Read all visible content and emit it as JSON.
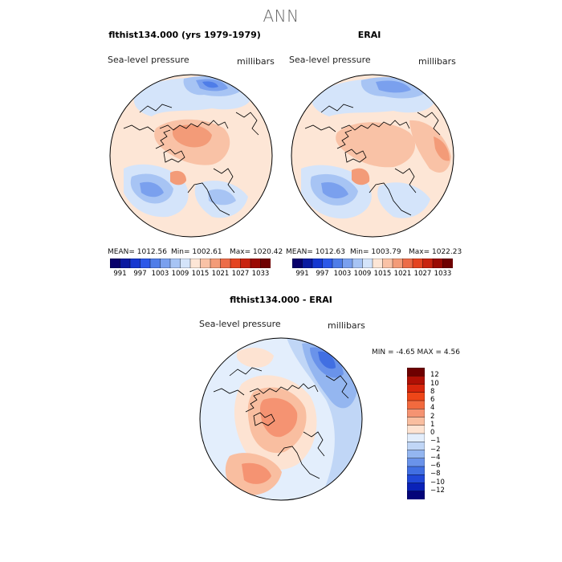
{
  "title": "ANN",
  "panels": [
    {
      "id": "model",
      "title": "flthist134.000 (yrs 1979-1979)",
      "variable": "Sea-level pressure",
      "units": "millibars",
      "mean_text": "MEAN= 1012.56",
      "min_text": "Min= 1002.61",
      "max_text": "Max= 1020.42"
    },
    {
      "id": "obs",
      "title": "ERAI",
      "variable": "Sea-level pressure",
      "units": "millibars",
      "mean_text": "MEAN= 1012.63",
      "min_text": "Min= 1003.79",
      "max_text": "Max= 1022.23"
    },
    {
      "id": "diff",
      "title": "flthist134.000 - ERAI",
      "variable": "Sea-level pressure",
      "units": "millibars",
      "minmax_text": "MIN =   -4.65 MAX =    4.56"
    }
  ],
  "chart_data": [
    {
      "type": "heatmap",
      "projection": "north-polar-stereographic",
      "title": "flthist134.000 (yrs 1979-1979)",
      "variable": "Sea-level pressure",
      "units": "millibars",
      "stats": {
        "mean": 1012.56,
        "min": 1002.61,
        "max": 1020.42
      },
      "colorbar": {
        "levels": [
          991,
          994,
          997,
          1000,
          1003,
          1006,
          1009,
          1012,
          1015,
          1018,
          1021,
          1024,
          1027,
          1030,
          1033
        ],
        "tick_labels": [
          "991",
          "997",
          "1003",
          "1009",
          "1015",
          "1021",
          "1027",
          "1033"
        ],
        "colors": [
          "#08006b",
          "#0a1aa0",
          "#1537d0",
          "#2c58e8",
          "#4f7de8",
          "#7aa0ee",
          "#a7c4f4",
          "#d4e4fa",
          "#fde6d6",
          "#f9c2a6",
          "#f39b78",
          "#ec6c48",
          "#e44421",
          "#c8230f",
          "#9a0a03",
          "#6e0000"
        ]
      }
    },
    {
      "type": "heatmap",
      "projection": "north-polar-stereographic",
      "title": "ERAI",
      "variable": "Sea-level pressure",
      "units": "millibars",
      "stats": {
        "mean": 1012.63,
        "min": 1003.79,
        "max": 1022.23
      },
      "colorbar": {
        "levels": [
          991,
          994,
          997,
          1000,
          1003,
          1006,
          1009,
          1012,
          1015,
          1018,
          1021,
          1024,
          1027,
          1030,
          1033
        ],
        "tick_labels": [
          "991",
          "997",
          "1003",
          "1009",
          "1015",
          "1021",
          "1027",
          "1033"
        ],
        "colors": [
          "#08006b",
          "#0a1aa0",
          "#1537d0",
          "#2c58e8",
          "#4f7de8",
          "#7aa0ee",
          "#a7c4f4",
          "#d4e4fa",
          "#fde6d6",
          "#f9c2a6",
          "#f39b78",
          "#ec6c48",
          "#e44421",
          "#c8230f",
          "#9a0a03",
          "#6e0000"
        ]
      }
    },
    {
      "type": "heatmap",
      "projection": "north-polar-stereographic",
      "title": "flthist134.000 - ERAI",
      "variable": "Sea-level pressure",
      "units": "millibars",
      "stats": {
        "min": -4.65,
        "max": 4.56
      },
      "colorbar": {
        "orientation": "vertical",
        "levels": [
          -12,
          -10,
          -8,
          -6,
          -4,
          -2,
          -1,
          0,
          1,
          2,
          4,
          6,
          8,
          10,
          12
        ],
        "tick_labels": [
          "12",
          "10",
          "8",
          "6",
          "4",
          "2",
          "1",
          "0",
          "−1",
          "−2",
          "−4",
          "−6",
          "−8",
          "−10",
          "−12"
        ],
        "colors": [
          "#6e0000",
          "#b01005",
          "#d8260c",
          "#ee4618",
          "#f26a3e",
          "#f59372",
          "#f9bea0",
          "#fde3d2",
          "#e3eefc",
          "#c0d6f6",
          "#94b6f0",
          "#6a93ea",
          "#416fe2",
          "#2148d8",
          "#0a22b8",
          "#04057a"
        ]
      }
    }
  ],
  "colors": {
    "ocean_neutral": "#fde6d6",
    "map_outline": "#000000",
    "coastline": "#000000"
  }
}
